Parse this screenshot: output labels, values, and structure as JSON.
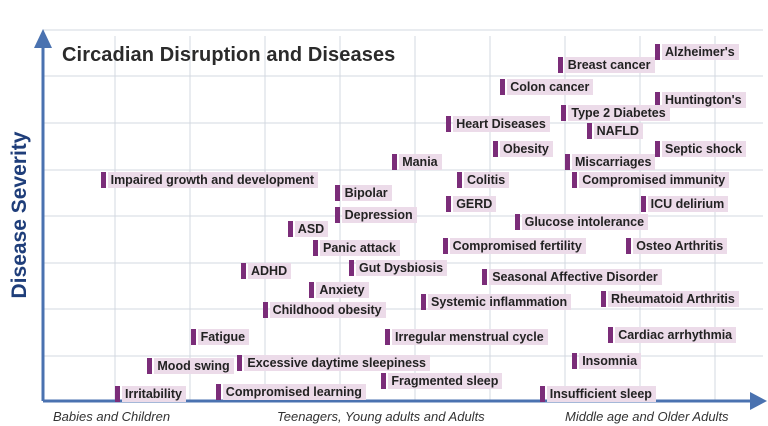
{
  "chart_data": {
    "type": "scatter",
    "title": "Circadian Disruption and Diseases",
    "ylabel": "Disease Severity",
    "x_categories": [
      "Babies and Children",
      "Teenagers, Young adults and Adults",
      "Middle age and Older Adults"
    ],
    "xlim": [
      0,
      100
    ],
    "ylim": [
      0,
      100
    ],
    "grid": true,
    "colors": {
      "marker": "#7b2d79",
      "label_bg": "#ecdbe9",
      "axis": "#4a72b0",
      "grid": "#d3d8e0",
      "ylabel": "#1f3e7a"
    },
    "points": [
      {
        "label": "Alzheimer's",
        "x": 85.0,
        "y": 95.5
      },
      {
        "label": "Breast cancer",
        "x": 71.5,
        "y": 92.0
      },
      {
        "label": "Colon cancer",
        "x": 63.5,
        "y": 86.0
      },
      {
        "label": "Huntington's",
        "x": 85.0,
        "y": 82.5
      },
      {
        "label": "Type 2 Diabetes",
        "x": 72.0,
        "y": 79.0
      },
      {
        "label": "Heart Diseases",
        "x": 56.0,
        "y": 76.0
      },
      {
        "label": "NAFLD",
        "x": 75.5,
        "y": 74.0
      },
      {
        "label": "Obesity",
        "x": 62.5,
        "y": 69.0
      },
      {
        "label": "Septic shock",
        "x": 85.0,
        "y": 69.0
      },
      {
        "label": "Mania",
        "x": 48.5,
        "y": 65.5
      },
      {
        "label": "Miscarriages",
        "x": 72.5,
        "y": 65.5
      },
      {
        "label": "Impaired growth and development",
        "x": 8.0,
        "y": 60.5
      },
      {
        "label": "Colitis",
        "x": 57.5,
        "y": 60.5
      },
      {
        "label": "Compromised immunity",
        "x": 73.5,
        "y": 60.5
      },
      {
        "label": "Bipolar",
        "x": 40.5,
        "y": 57.0
      },
      {
        "label": "GERD",
        "x": 56.0,
        "y": 54.0
      },
      {
        "label": "ICU delirium",
        "x": 83.0,
        "y": 54.0
      },
      {
        "label": "Depression",
        "x": 40.5,
        "y": 51.0
      },
      {
        "label": "Glucose intolerance",
        "x": 65.5,
        "y": 49.0
      },
      {
        "label": "ASD",
        "x": 34.0,
        "y": 47.0
      },
      {
        "label": "Compromised fertility",
        "x": 55.5,
        "y": 42.5
      },
      {
        "label": "Osteo Arthritis",
        "x": 81.0,
        "y": 42.5
      },
      {
        "label": "Panic attack",
        "x": 37.5,
        "y": 42.0
      },
      {
        "label": "Gut Dysbiosis",
        "x": 42.5,
        "y": 36.5
      },
      {
        "label": "ADHD",
        "x": 27.5,
        "y": 35.5
      },
      {
        "label": "Seasonal Affective Disorder",
        "x": 61.0,
        "y": 34.0
      },
      {
        "label": "Anxiety",
        "x": 37.0,
        "y": 30.5
      },
      {
        "label": "Rheumatoid Arthritis",
        "x": 77.5,
        "y": 28.0
      },
      {
        "label": "Systemic inflammation",
        "x": 52.5,
        "y": 27.0
      },
      {
        "label": "Childhood obesity",
        "x": 30.5,
        "y": 25.0
      },
      {
        "label": "Fatigue",
        "x": 20.5,
        "y": 17.5
      },
      {
        "label": "Irregular menstrual cycle",
        "x": 47.5,
        "y": 17.5
      },
      {
        "label": "Cardiac arrhythmia",
        "x": 78.5,
        "y": 18.0
      },
      {
        "label": "Insomnia",
        "x": 73.5,
        "y": 11.0
      },
      {
        "label": "Excessive daytime sleepiness",
        "x": 27.0,
        "y": 10.5
      },
      {
        "label": "Mood swing",
        "x": 14.5,
        "y": 9.5
      },
      {
        "label": "Fragmented sleep",
        "x": 47.0,
        "y": 5.5
      },
      {
        "label": "Compromised learning",
        "x": 24.0,
        "y": 2.5
      },
      {
        "label": "Irritability",
        "x": 10.0,
        "y": 2.0
      },
      {
        "label": "Insufficient sleep",
        "x": 69.0,
        "y": 2.0
      }
    ]
  }
}
